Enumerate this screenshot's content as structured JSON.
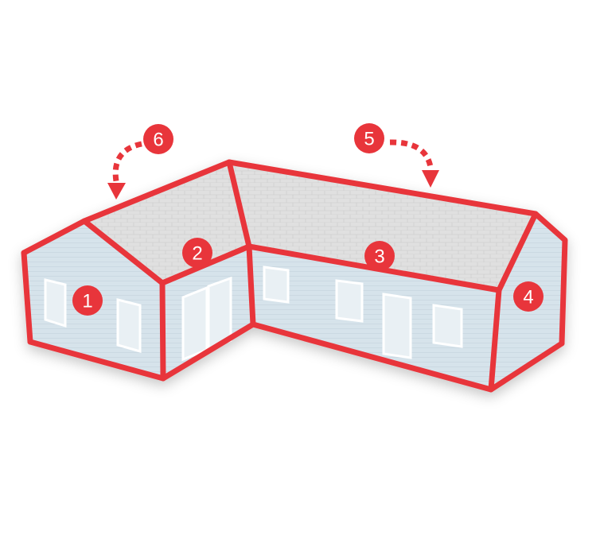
{
  "colors": {
    "outline": "#e8353b",
    "badge": "#e8353b",
    "badge_text": "#ffffff",
    "wall": "#d7e4ec",
    "roof": "#dcdcdc",
    "window_frame": "#f4f7f9"
  },
  "labels": {
    "section_1": "1",
    "section_2": "2",
    "section_3": "3",
    "section_4": "4",
    "arrow_5": "5",
    "arrow_6": "6"
  }
}
